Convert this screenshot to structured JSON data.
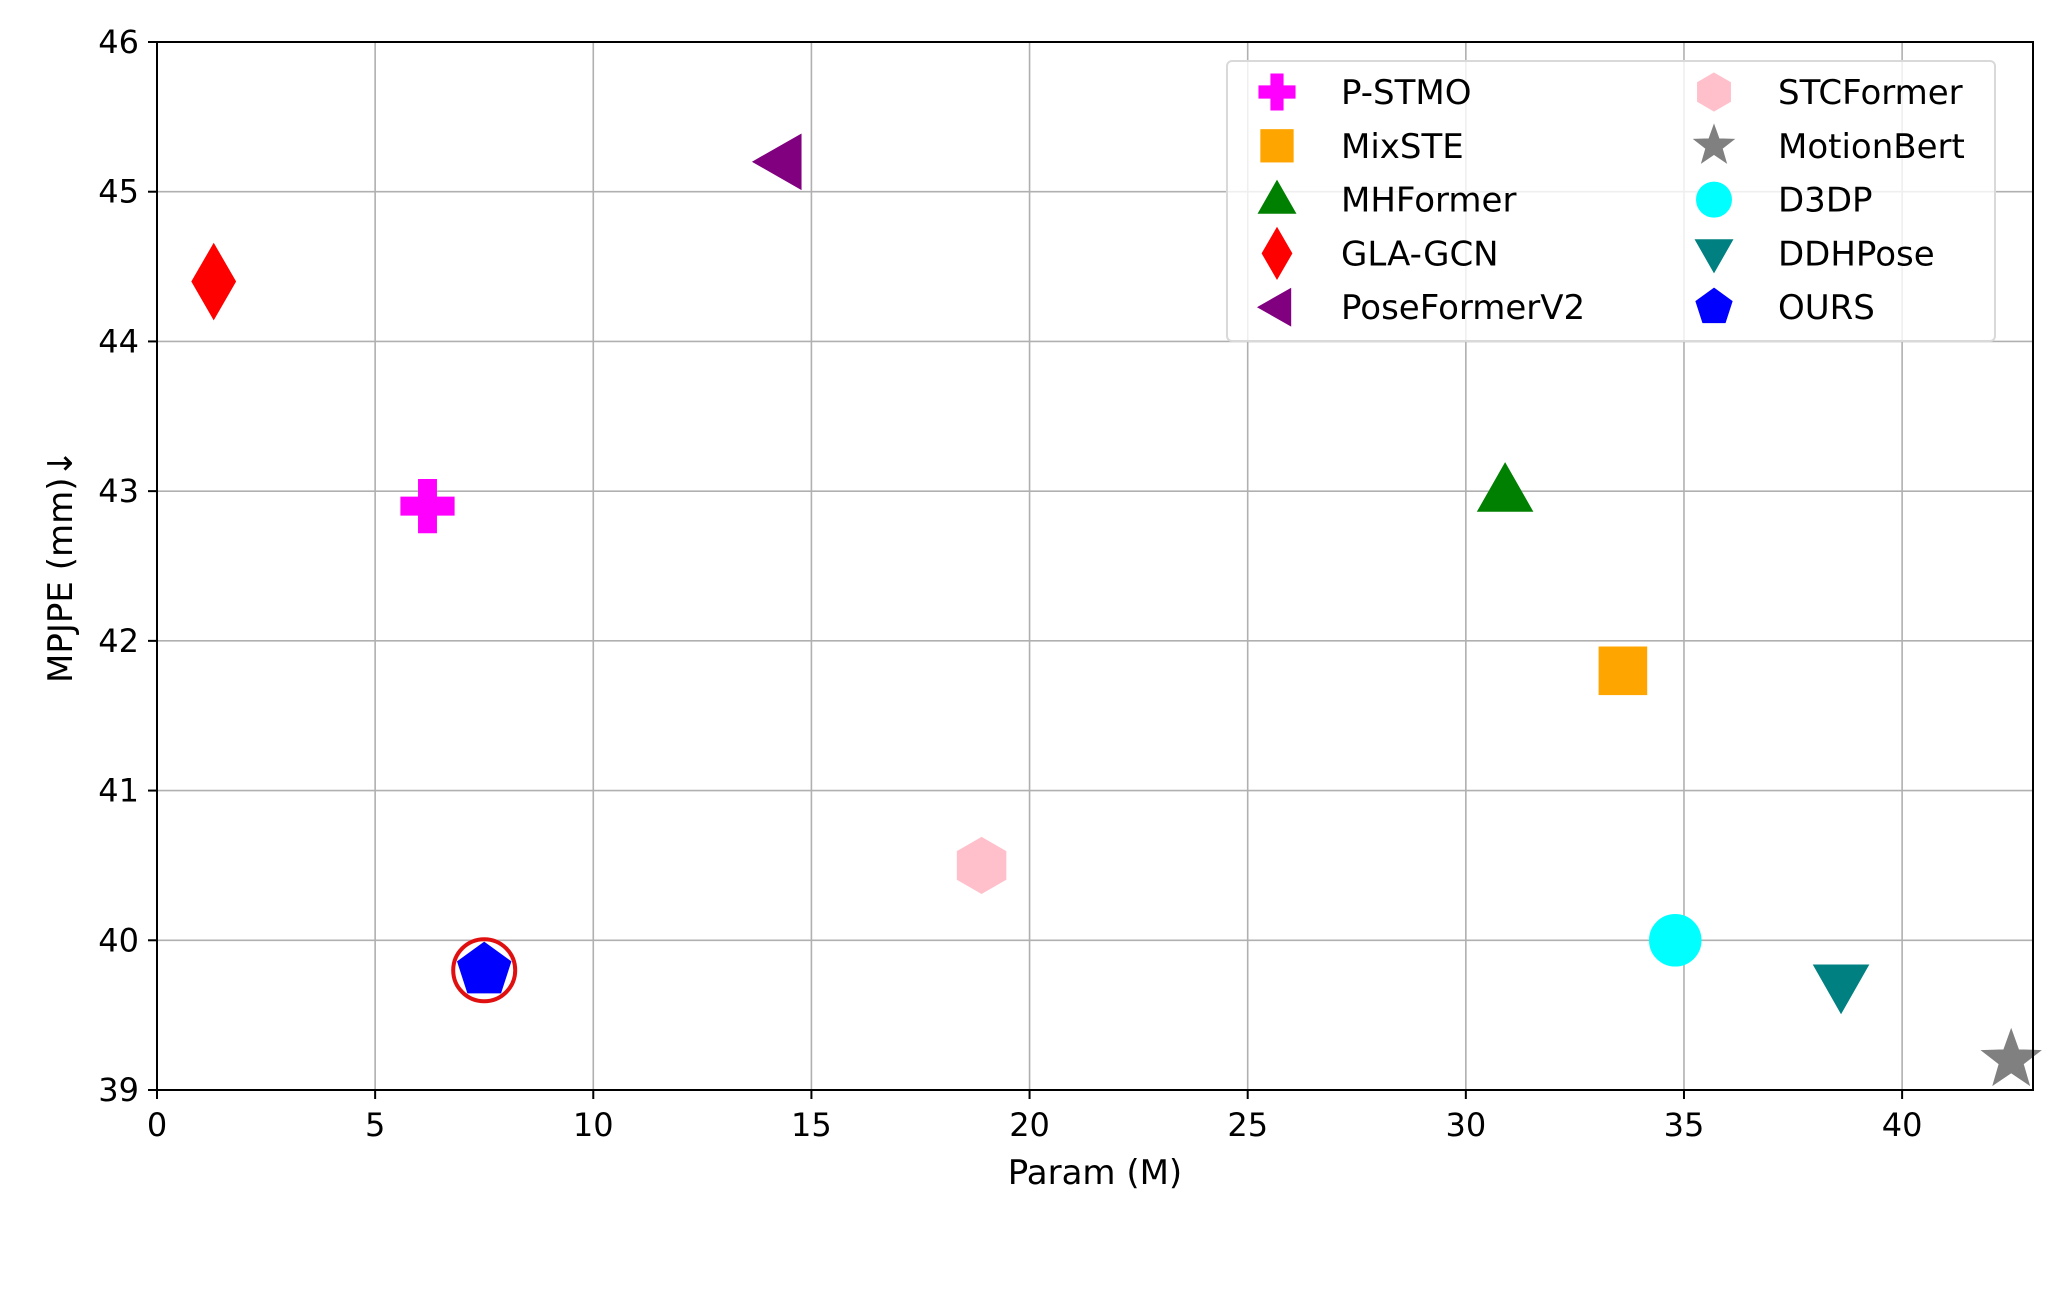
{
  "chart_data": {
    "type": "scatter",
    "xlabel": "Param (M)",
    "ylabel": "MPJPE (mm)↓",
    "xlim": [
      0,
      43
    ],
    "ylim": [
      39,
      46
    ],
    "xticks": [
      0,
      5,
      10,
      15,
      20,
      25,
      30,
      35,
      40
    ],
    "yticks": [
      39,
      40,
      41,
      42,
      43,
      44,
      45,
      46
    ],
    "xtick_labels": [
      "0",
      "5",
      "10",
      "15",
      "20",
      "25",
      "30",
      "35",
      "40"
    ],
    "ytick_labels": [
      "39",
      "40",
      "41",
      "42",
      "43",
      "44",
      "45",
      "46"
    ],
    "grid": true,
    "legend_position": "top-right",
    "legend_columns": 2,
    "series": [
      {
        "name": "P-STMO",
        "x": 6.2,
        "y": 42.9,
        "marker": "plus",
        "color": "#ff00ff"
      },
      {
        "name": "MixSTE",
        "x": 33.6,
        "y": 41.8,
        "marker": "square",
        "color": "#ffa500"
      },
      {
        "name": "MHFormer",
        "x": 30.9,
        "y": 43.0,
        "marker": "triangle-up",
        "color": "#008000"
      },
      {
        "name": "GLA-GCN",
        "x": 1.3,
        "y": 44.4,
        "marker": "diamond",
        "color": "#ff0000"
      },
      {
        "name": "PoseFormerV2",
        "x": 14.3,
        "y": 45.2,
        "marker": "triangle-left",
        "color": "#800080"
      },
      {
        "name": "STCFormer",
        "x": 18.9,
        "y": 40.5,
        "marker": "hexagon",
        "color": "#ffc0cb"
      },
      {
        "name": "MotionBert",
        "x": 42.5,
        "y": 39.2,
        "marker": "star",
        "color": "#808080"
      },
      {
        "name": "D3DP",
        "x": 34.8,
        "y": 40.0,
        "marker": "circle",
        "color": "#00ffff"
      },
      {
        "name": "DDHPose",
        "x": 38.6,
        "y": 39.7,
        "marker": "triangle-down",
        "color": "#008080"
      },
      {
        "name": "OURS",
        "x": 7.5,
        "y": 39.8,
        "marker": "pentagon",
        "color": "#0000ff",
        "highlight_ring_color": "#e01010"
      }
    ]
  }
}
